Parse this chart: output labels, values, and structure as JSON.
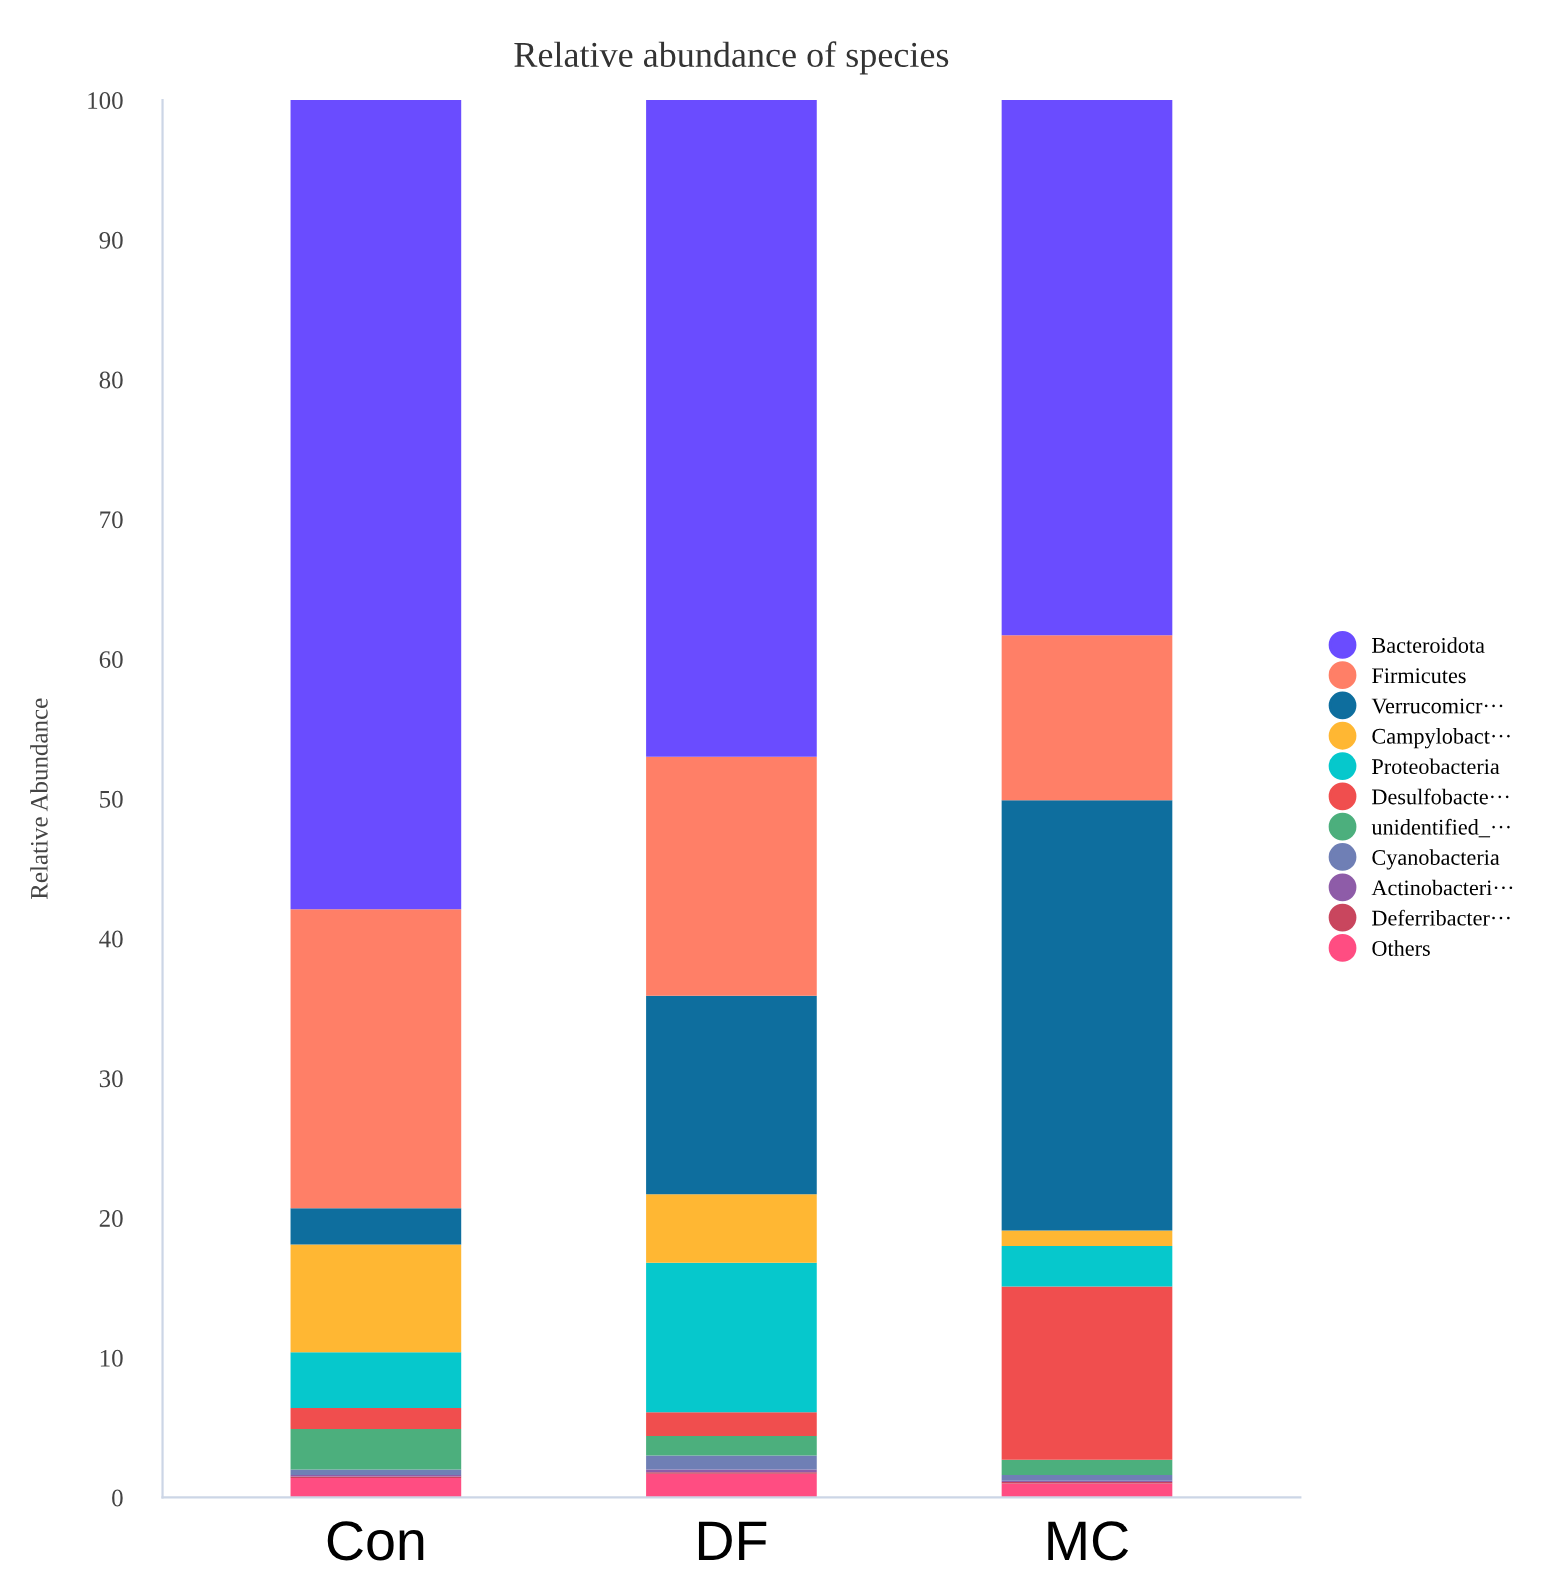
{
  "chart_data": {
    "type": "bar",
    "title": "Relative abundance of species",
    "ylabel": "Relative Abundance",
    "stacked": true,
    "categories": [
      "Con",
      "DF",
      "MC"
    ],
    "ylim": [
      0,
      100
    ],
    "yticks": [
      0,
      10,
      20,
      30,
      40,
      50,
      60,
      70,
      80,
      90,
      100
    ],
    "grid": false,
    "legend": "right",
    "series": [
      {
        "name": "Others",
        "color": "#ff4d82",
        "values": [
          1.4,
          1.7,
          1.0
        ]
      },
      {
        "name": "Deferribacter···",
        "color": "#c9465e",
        "values": [
          0.1,
          0.1,
          0.1
        ]
      },
      {
        "name": "Actinobacteri···",
        "color": "#8e5ca8",
        "values": [
          0.1,
          0.2,
          0.1
        ]
      },
      {
        "name": "Cyanobacteria",
        "color": "#6f7fb5",
        "values": [
          0.4,
          1.0,
          0.4
        ]
      },
      {
        "name": "unidentified_···",
        "color": "#4caf7d",
        "values": [
          2.9,
          1.4,
          1.1
        ]
      },
      {
        "name": "Desulfobacte···",
        "color": "#f04e4e",
        "values": [
          1.5,
          1.7,
          12.4
        ]
      },
      {
        "name": "Proteobacteria",
        "color": "#06c8cc",
        "values": [
          4.0,
          10.7,
          2.9
        ]
      },
      {
        "name": "Campylobact···",
        "color": "#ffb733",
        "values": [
          7.7,
          4.9,
          1.1
        ]
      },
      {
        "name": "Verrucomicr···",
        "color": "#0e6e9e",
        "values": [
          2.6,
          14.2,
          30.8
        ]
      },
      {
        "name": "Firmicutes",
        "color": "#ff7f67",
        "values": [
          21.4,
          17.1,
          11.8
        ]
      },
      {
        "name": "Bacteroidota",
        "color": "#6a4cff",
        "values": [
          57.9,
          47.0,
          38.3
        ]
      }
    ]
  }
}
